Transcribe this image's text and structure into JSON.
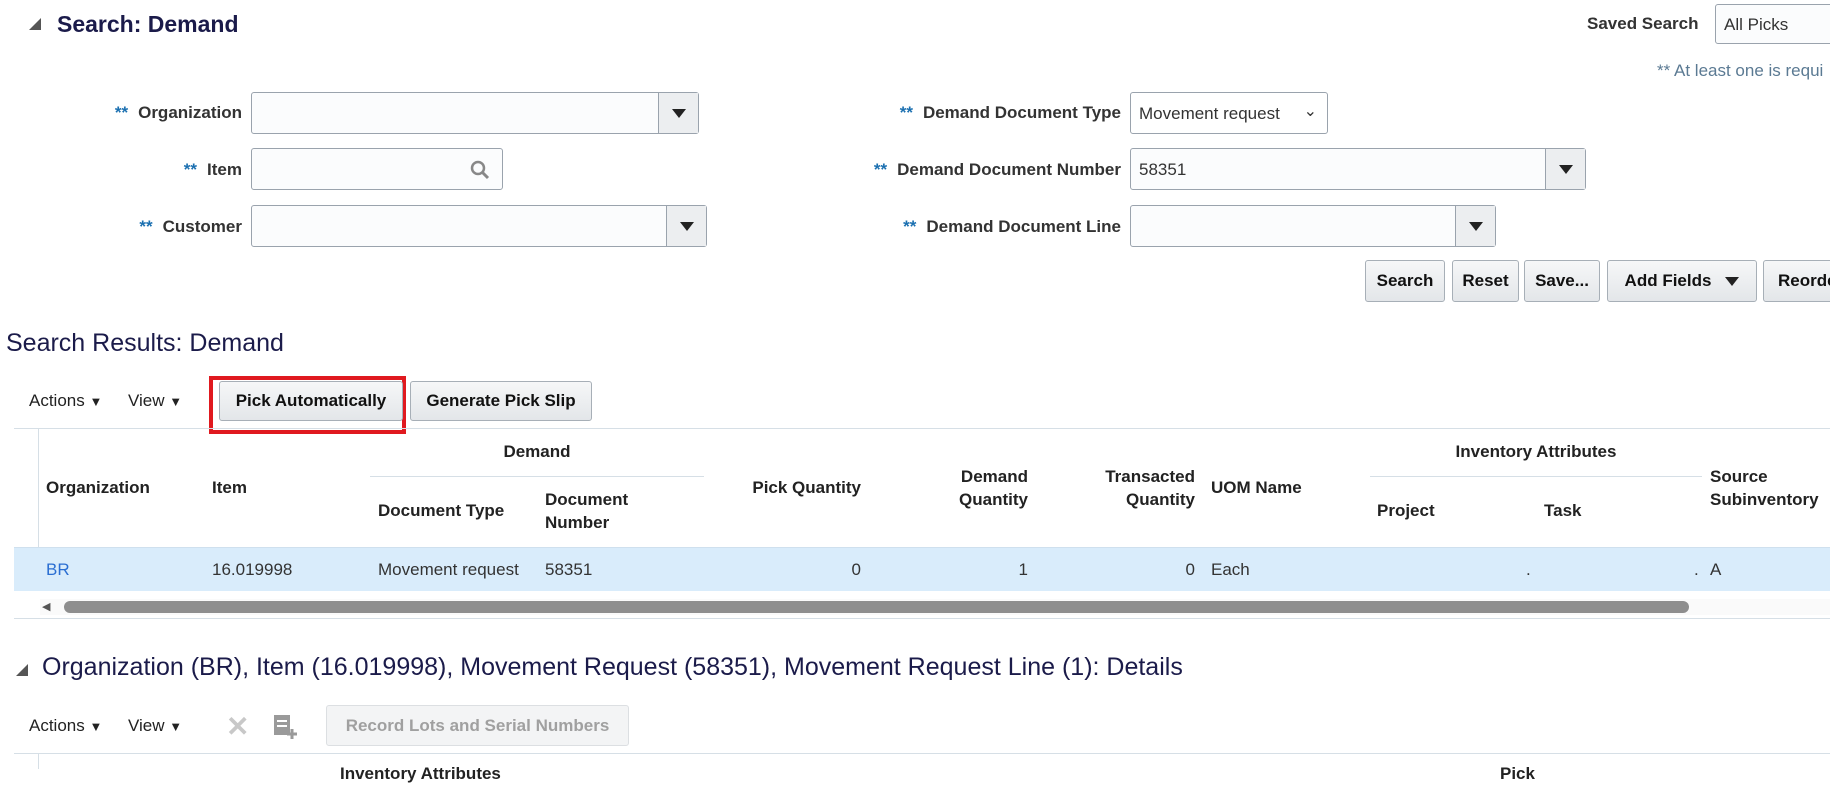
{
  "search": {
    "title": "Search: Demand",
    "saved_search_label": "Saved Search",
    "saved_search_value": "All Picks",
    "required_note": "** At least one is requi",
    "required_marker": "**",
    "fields": {
      "organization": {
        "label": "Organization",
        "value": ""
      },
      "item": {
        "label": "Item",
        "value": ""
      },
      "customer": {
        "label": "Customer",
        "value": ""
      },
      "doc_type": {
        "label": "Demand Document Type",
        "value": "Movement request"
      },
      "doc_number": {
        "label": "Demand Document Number",
        "value": "58351"
      },
      "doc_line": {
        "label": "Demand Document Line",
        "value": ""
      }
    },
    "buttons": {
      "search": "Search",
      "reset": "Reset",
      "save": "Save...",
      "add_fields": "Add Fields",
      "reorder": "Reorde"
    }
  },
  "results": {
    "title": "Search Results: Demand",
    "actions": "Actions",
    "view": "View",
    "pick_automatically": "Pick Automatically",
    "generate_pick_slip": "Generate Pick Slip",
    "highlight_color": "#e0191f",
    "groups": {
      "demand": "Demand",
      "inventory": "Inventory Attributes"
    },
    "columns": {
      "organization": "Organization",
      "item": "Item",
      "doc_type": "Document Type",
      "doc_number": "Document Number",
      "pick_qty": "Pick Quantity",
      "demand_qty": "Demand Quantity",
      "transacted_qty": "Transacted Quantity",
      "uom": "UOM Name",
      "project": "Project",
      "task": "Task",
      "source_sub": "Source Subinventory"
    },
    "rows": [
      {
        "organization": "BR",
        "item": "16.019998",
        "doc_type": "Movement request",
        "doc_number": "58351",
        "pick_qty": "0",
        "demand_qty": "1",
        "transacted_qty": "0",
        "uom": "Each",
        "project": "",
        "task": ".",
        "project_dot": ".",
        "source_sub": "A"
      }
    ]
  },
  "details": {
    "title": "Organization (BR), Item (16.019998), Movement Request (58351), Movement Request Line (1): Details",
    "actions": "Actions",
    "view": "View",
    "record_lots": "Record Lots and Serial Numbers",
    "partial_header_1": "Inventory Attributes",
    "partial_header_2": "Pick"
  }
}
